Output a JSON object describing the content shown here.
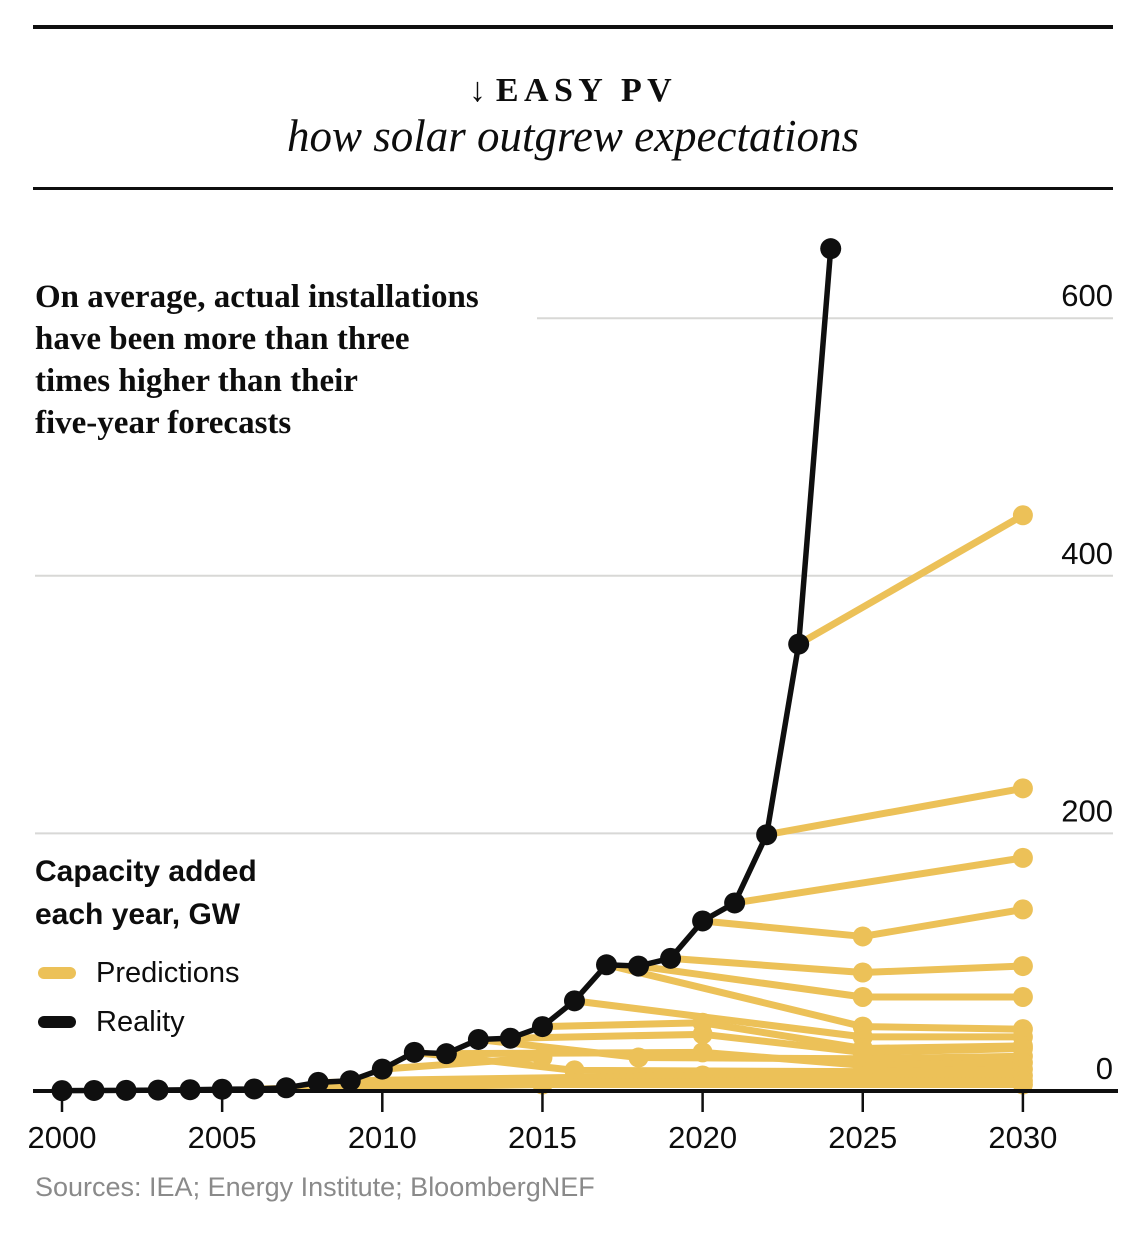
{
  "header": {
    "arrow": "↓",
    "kicker": "EASY PV",
    "subtitle": "how solar outgrew expectations"
  },
  "annotation": "On average, actual installations\nhave been more than three\ntimes higher than their\nfive-year forecasts",
  "legend": {
    "title": "Capacity added\neach year, GW",
    "items": [
      {
        "label": "Predictions",
        "color": "#ECC158"
      },
      {
        "label": "Reality",
        "color": "#0F0F0F"
      }
    ]
  },
  "footer": {
    "sources": "Sources: IEA; Energy Institute; BloombergNEF"
  },
  "colors": {
    "prediction_yellow": "#ECC158",
    "reality_black": "#0F0F0F",
    "gridline_gray": "#D8D8D6",
    "axis_black": "#0F0F0F",
    "label_dark": "#0D0D0D",
    "source_gray": "#8A8A8A"
  },
  "chart_data": {
    "type": "line",
    "title": "EASY PV — how solar outgrew expectations",
    "ylabel": "Capacity added each year, GW",
    "xlabel": "",
    "x_ticks": [
      2000,
      2005,
      2010,
      2015,
      2020,
      2025,
      2030
    ],
    "y_ticks": [
      0,
      200,
      400,
      600
    ],
    "xlim": [
      2000,
      2030
    ],
    "ylim": [
      0,
      660
    ],
    "grid": "horizontal",
    "legend_position": "left-middle",
    "y_labels_position": "right",
    "series": [
      {
        "name": "Reality",
        "color": "#0F0F0F",
        "points": [
          [
            2000,
            0.3
          ],
          [
            2001,
            0.4
          ],
          [
            2002,
            0.5
          ],
          [
            2003,
            0.7
          ],
          [
            2004,
            1.0
          ],
          [
            2005,
            1.4
          ],
          [
            2006,
            1.6
          ],
          [
            2007,
            2.5
          ],
          [
            2008,
            6.7
          ],
          [
            2009,
            8
          ],
          [
            2010,
            17
          ],
          [
            2011,
            30
          ],
          [
            2012,
            29
          ],
          [
            2013,
            40
          ],
          [
            2014,
            41
          ],
          [
            2015,
            50
          ],
          [
            2016,
            70
          ],
          [
            2017,
            98
          ],
          [
            2018,
            97
          ],
          [
            2019,
            103
          ],
          [
            2020,
            132
          ],
          [
            2021,
            146
          ],
          [
            2022,
            199
          ],
          [
            2023,
            347
          ],
          [
            2024,
            654
          ]
        ]
      }
    ],
    "prediction_lines": [
      {
        "start_year": 2023,
        "points": [
          [
            2023,
            347
          ],
          [
            2030,
            447
          ]
        ]
      },
      {
        "start_year": 2022,
        "points": [
          [
            2022,
            199
          ],
          [
            2030,
            235
          ]
        ]
      },
      {
        "start_year": 2021,
        "points": [
          [
            2021,
            146
          ],
          [
            2030,
            181
          ]
        ]
      },
      {
        "start_year": 2020,
        "points": [
          [
            2020,
            132
          ],
          [
            2025,
            120
          ],
          [
            2030,
            141
          ]
        ]
      },
      {
        "start_year": 2019,
        "points": [
          [
            2019,
            103
          ],
          [
            2025,
            92
          ],
          [
            2030,
            97
          ]
        ]
      },
      {
        "start_year": 2018,
        "points": [
          [
            2018,
            97
          ],
          [
            2025,
            73
          ],
          [
            2030,
            73
          ]
        ]
      },
      {
        "start_year": 2017,
        "points": [
          [
            2017,
            98
          ],
          [
            2025,
            50
          ],
          [
            2030,
            48
          ]
        ]
      },
      {
        "start_year": 2016,
        "points": [
          [
            2016,
            70
          ],
          [
            2025,
            42
          ],
          [
            2030,
            42
          ]
        ]
      },
      {
        "start_year": 2015,
        "points": [
          [
            2015,
            50
          ],
          [
            2020,
            53
          ],
          [
            2025,
            33
          ],
          [
            2030,
            35
          ]
        ]
      },
      {
        "start_year": 2014,
        "points": [
          [
            2014,
            41
          ],
          [
            2020,
            44
          ],
          [
            2025,
            30
          ],
          [
            2030,
            33
          ]
        ]
      },
      {
        "start_year": 2013,
        "points": [
          [
            2013,
            40
          ],
          [
            2018,
            26
          ],
          [
            2025,
            25
          ],
          [
            2030,
            27
          ]
        ]
      },
      {
        "start_year": 2012,
        "points": [
          [
            2012,
            29
          ],
          [
            2020,
            30
          ],
          [
            2025,
            20
          ],
          [
            2030,
            22
          ]
        ]
      },
      {
        "start_year": 2011,
        "points": [
          [
            2011,
            30
          ],
          [
            2016,
            16
          ],
          [
            2025,
            15
          ],
          [
            2030,
            17
          ]
        ]
      },
      {
        "start_year": 2010,
        "points": [
          [
            2010,
            17
          ],
          [
            2015,
            26
          ]
        ]
      },
      {
        "start_year": 2009,
        "points": [
          [
            2009,
            8
          ],
          [
            2020,
            12
          ],
          [
            2025,
            11
          ],
          [
            2030,
            12
          ]
        ]
      },
      {
        "start_year": 2008,
        "points": [
          [
            2008,
            6.7
          ],
          [
            2030,
            8
          ]
        ]
      },
      {
        "start_year": 2006,
        "points": [
          [
            2006,
            1.6
          ],
          [
            2015,
            5
          ],
          [
            2030,
            5
          ]
        ]
      }
    ]
  }
}
